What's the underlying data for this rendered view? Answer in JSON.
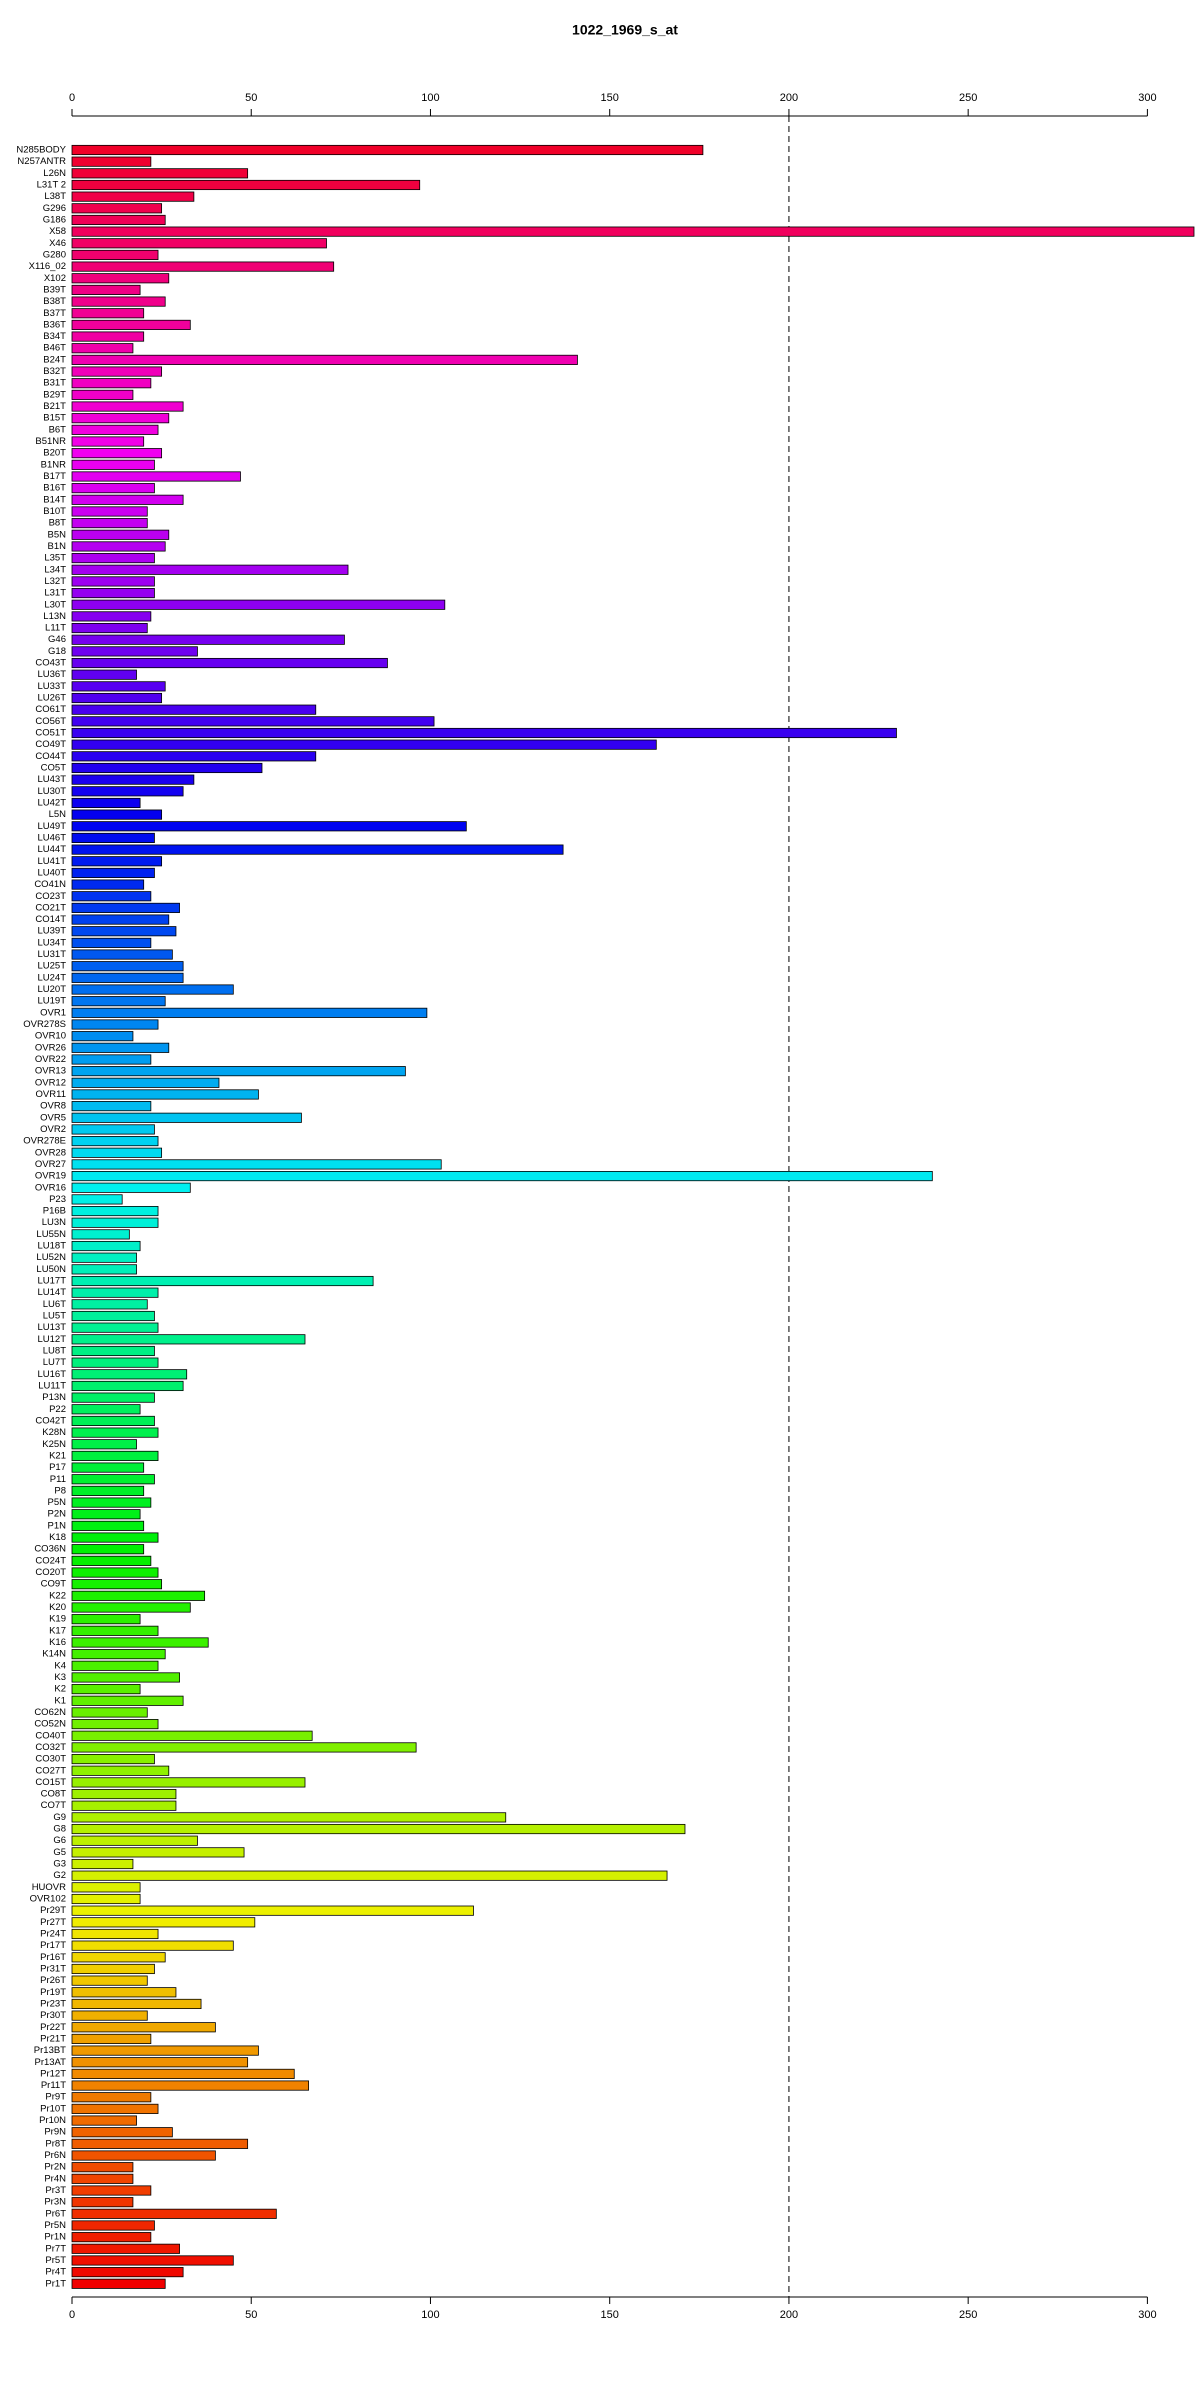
{
  "chart_data": {
    "type": "barh",
    "title": "1022_1969_s_at",
    "categories": [
      "N285BODY",
      "N257ANTR",
      "L26N",
      "L31T 2",
      "L38T",
      "G296",
      "G186",
      "X58",
      "X46",
      "G280",
      "X116_02",
      "X102",
      "B39T",
      "B38T",
      "B37T",
      "B36T",
      "B34T",
      "B46T",
      "B24T",
      "B32T",
      "B31T",
      "B29T",
      "B21T",
      "B15T",
      "B6T",
      "B51NR",
      "B20T",
      "B1NR",
      "B17T",
      "B16T",
      "B14T",
      "B10T",
      "B8T",
      "B5N",
      "B1N",
      "L35T",
      "L34T",
      "L32T",
      "L31T",
      "L30T",
      "L13N",
      "L11T",
      "G46",
      "G18",
      "CO43T",
      "LU36T",
      "LU33T",
      "LU26T",
      "CO61T",
      "CO56T",
      "CO51T",
      "CO49T",
      "CO44T",
      "CO5T",
      "LU43T",
      "LU30T",
      "LU42T",
      "L5N",
      "LU49T",
      "LU46T",
      "LU44T",
      "LU41T",
      "LU40T",
      "CO41N",
      "CO23T",
      "CO21T",
      "CO14T",
      "LU39T",
      "LU34T",
      "LU31T",
      "LU25T",
      "LU24T",
      "LU20T",
      "LU19T",
      "OVR1",
      "OVR278S",
      "OVR10",
      "OVR26",
      "OVR22",
      "OVR13",
      "OVR12",
      "OVR11",
      "OVR8",
      "OVR5",
      "OVR2",
      "OVR278E",
      "OVR28",
      "OVR27",
      "OVR19",
      "OVR16",
      "P23",
      "P16B",
      "LU3N",
      "LU55N",
      "LU18T",
      "LU52N",
      "LU50N",
      "LU17T",
      "LU14T",
      "LU6T",
      "LU5T",
      "LU13T",
      "LU12T",
      "LU8T",
      "LU7T",
      "LU16T",
      "LU11T",
      "P13N",
      "P22",
      "CO42T",
      "K28N",
      "K25N",
      "K21",
      "P17",
      "P11",
      "P8",
      "P5N",
      "P2N",
      "P1N",
      "K18",
      "CO36N",
      "CO24T",
      "CO20T",
      "CO9T",
      "K22",
      "K20",
      "K19",
      "K17",
      "K16",
      "K14N",
      "K4",
      "K3",
      "K2",
      "K1",
      "CO62N",
      "CO52N",
      "CO40T",
      "CO32T",
      "CO30T",
      "CO27T",
      "CO15T",
      "CO8T",
      "CO7T",
      "G9",
      "G8",
      "G6",
      "G5",
      "G3",
      "G2",
      "HUOVR",
      "OVR102",
      "Pr29T",
      "Pr27T",
      "Pr24T",
      "Pr17T",
      "Pr16T",
      "Pr31T",
      "Pr26T",
      "Pr19T",
      "Pr23T",
      "Pr30T",
      "Pr22T",
      "Pr21T",
      "Pr13BT",
      "Pr13AT",
      "Pr12T",
      "Pr11T",
      "Pr9T",
      "Pr10T",
      "Pr10N",
      "Pr9N",
      "Pr8T",
      "Pr6N",
      "Pr2N",
      "Pr4N",
      "Pr3T",
      "Pr3N",
      "Pr6T",
      "Pr5N",
      "Pr1N",
      "Pr7T",
      "Pr5T",
      "Pr4T",
      "Pr1T"
    ],
    "values": [
      176,
      22,
      49,
      97,
      34,
      25,
      26,
      313,
      71,
      24,
      73,
      27,
      19,
      26,
      20,
      33,
      20,
      17,
      141,
      25,
      22,
      17,
      31,
      27,
      24,
      20,
      25,
      23,
      47,
      23,
      31,
      21,
      21,
      27,
      26,
      23,
      77,
      23,
      23,
      104,
      22,
      21,
      76,
      35,
      88,
      18,
      26,
      25,
      68,
      101,
      230,
      163,
      68,
      53,
      34,
      31,
      19,
      25,
      110,
      23,
      137,
      25,
      23,
      20,
      22,
      30,
      27,
      29,
      22,
      28,
      31,
      31,
      45,
      26,
      99,
      24,
      17,
      27,
      22,
      93,
      41,
      52,
      22,
      64,
      23,
      24,
      25,
      103,
      240,
      33,
      14,
      24,
      24,
      16,
      19,
      18,
      18,
      84,
      24,
      21,
      23,
      24,
      65,
      23,
      24,
      32,
      31,
      23,
      19,
      23,
      24,
      18,
      24,
      20,
      23,
      20,
      22,
      19,
      20,
      24,
      20,
      22,
      24,
      25,
      37,
      33,
      19,
      24,
      38,
      26,
      24,
      30,
      19,
      31,
      21,
      24,
      67,
      96,
      23,
      27,
      65,
      29,
      29,
      121,
      171,
      35,
      48,
      17,
      166,
      19,
      19,
      112,
      51,
      24,
      45,
      26,
      23,
      21,
      29,
      36,
      21,
      40,
      22,
      52,
      49,
      62,
      66,
      22,
      24,
      18,
      28,
      49,
      40,
      17,
      17,
      22,
      17,
      57,
      23,
      22,
      30,
      45,
      31,
      26
    ],
    "colormap": "rainbow",
    "xlim": [
      0,
      313
    ],
    "xticks": [
      0,
      50,
      100,
      150,
      200,
      250,
      300
    ],
    "vline": 200
  }
}
